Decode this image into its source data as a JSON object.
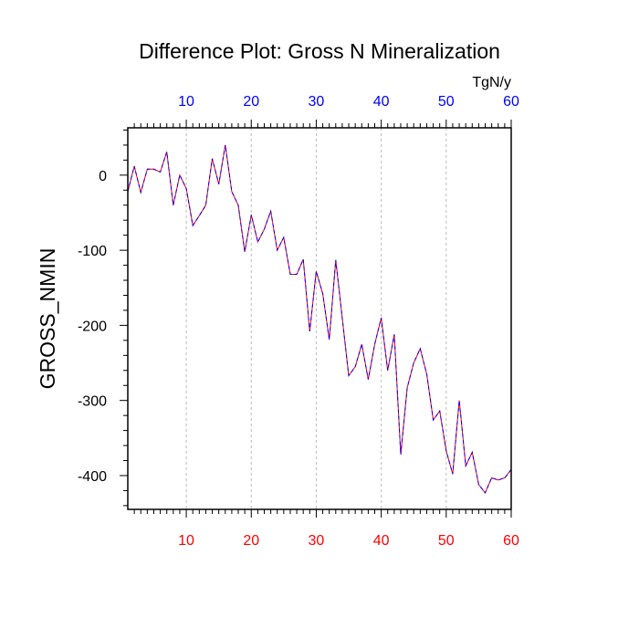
{
  "chart_data": {
    "type": "line",
    "title": "Difference Plot: Gross N Mineralization",
    "units": "TgN/y",
    "ylabel": "GROSS_NMIN",
    "xlabel": "",
    "xlim": [
      1,
      60
    ],
    "ylim": [
      -445,
      63
    ],
    "x_ticks": [
      10,
      20,
      30,
      40,
      50,
      60
    ],
    "y_ticks": [
      0,
      -100,
      -200,
      -300,
      -400
    ],
    "grid": "vertical-dashed",
    "colors": {
      "bottom_ticks": "#ff0000",
      "top_ticks": "#0000ff",
      "line_a": "#ff0000",
      "line_b": "#0000ff"
    },
    "series": [
      {
        "x": [
          1,
          2,
          3,
          4,
          5,
          6,
          7,
          8,
          9,
          10,
          11,
          12,
          13,
          14,
          15,
          16,
          17,
          18,
          19,
          20,
          21,
          22,
          23,
          24,
          25,
          26,
          27,
          28,
          29,
          30,
          31,
          32,
          33,
          34,
          35,
          36,
          37,
          38,
          39,
          40,
          41,
          42,
          43,
          44,
          45,
          46,
          47,
          48,
          49,
          50,
          51,
          52,
          53,
          54,
          55,
          56,
          57,
          58,
          59,
          60
        ],
        "values": [
          -22,
          12,
          -23,
          8,
          8,
          4,
          31,
          -40,
          0,
          -18,
          -67,
          -54,
          -40,
          22,
          -12,
          40,
          -22,
          -40,
          -102,
          -53,
          -89,
          -72,
          -48,
          -100,
          -83,
          -132,
          -132,
          -112,
          -208,
          -128,
          -158,
          -219,
          -113,
          -190,
          -267,
          -255,
          -225,
          -272,
          -225,
          -190,
          -260,
          -212,
          -372,
          -283,
          -250,
          -231,
          -265,
          -326,
          -314,
          -367,
          -398,
          -300,
          -387,
          -369,
          -412,
          -423,
          -403,
          -406,
          -403,
          -392
        ]
      }
    ]
  }
}
